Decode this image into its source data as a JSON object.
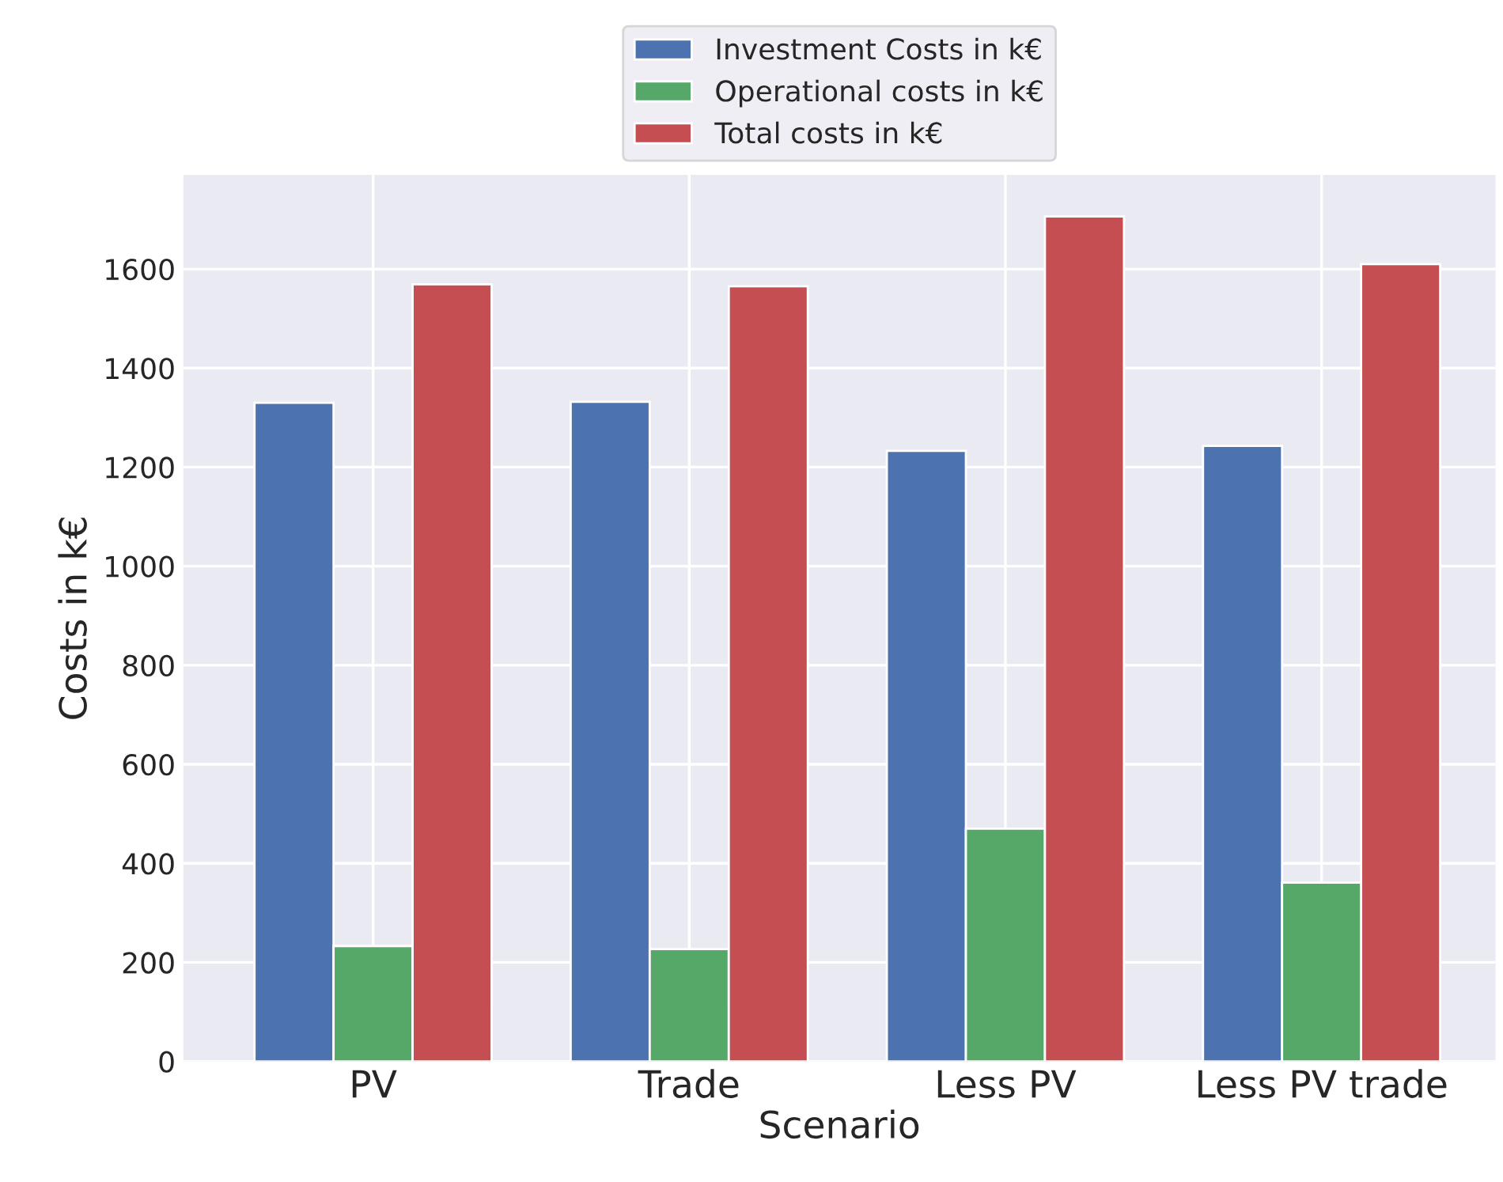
{
  "chart_data": {
    "type": "bar",
    "xlabel": "Scenario",
    "ylabel": "Costs in k€",
    "categories": [
      "PV",
      "Trade",
      "Less PV",
      "Less PV trade"
    ],
    "series": [
      {
        "name": "Investment Costs in k€",
        "color": "#4c72b0",
        "values": [
          1330,
          1332,
          1233,
          1243
        ]
      },
      {
        "name": "Operational costs in k€",
        "color": "#55a868",
        "values": [
          233,
          227,
          470,
          361
        ]
      },
      {
        "name": "Total costs in k€",
        "color": "#c44e52",
        "values": [
          1569,
          1565,
          1706,
          1610
        ]
      }
    ],
    "ylim": [
      0,
      1790
    ],
    "yticks": [
      0,
      200,
      400,
      600,
      800,
      1000,
      1200,
      1400,
      1600
    ],
    "grid": true,
    "legend": "top"
  }
}
